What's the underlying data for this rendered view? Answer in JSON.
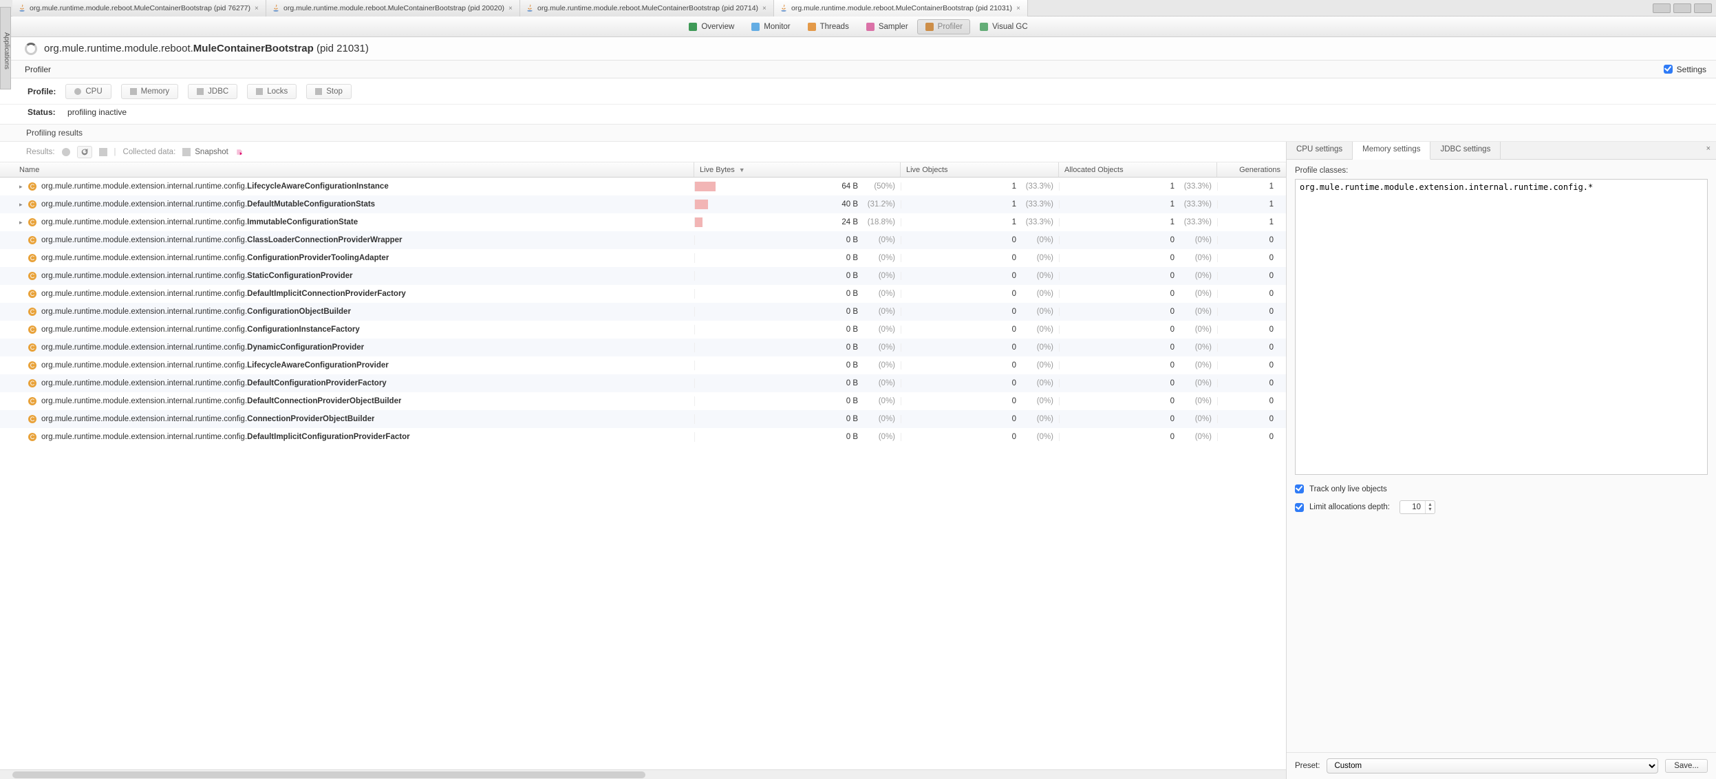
{
  "sidebar_label": "Applications",
  "tabs": [
    {
      "label": "org.mule.runtime.module.reboot.MuleContainerBootstrap (pid 76277)",
      "active": false
    },
    {
      "label": "org.mule.runtime.module.reboot.MuleContainerBootstrap (pid 20020)",
      "active": false
    },
    {
      "label": "org.mule.runtime.module.reboot.MuleContainerBootstrap (pid 20714)",
      "active": false
    },
    {
      "label": "org.mule.runtime.module.reboot.MuleContainerBootstrap (pid 21031)",
      "active": true
    }
  ],
  "toolbar": [
    {
      "id": "overview",
      "label": "Overview",
      "icon": "#1f8a3b"
    },
    {
      "id": "monitor",
      "label": "Monitor",
      "icon": "#4aa0e0"
    },
    {
      "id": "threads",
      "label": "Threads",
      "icon": "#e08a2a"
    },
    {
      "id": "sampler",
      "label": "Sampler",
      "icon": "#d65a9a"
    },
    {
      "id": "profiler",
      "label": "Profiler",
      "icon": "#c97f2d",
      "active": true
    },
    {
      "id": "visualgc",
      "label": "Visual GC",
      "icon": "#4aa060"
    }
  ],
  "header": {
    "prefix": "org.mule.runtime.module.reboot.",
    "bold": "MuleContainerBootstrap",
    "suffix": " (pid 21031)"
  },
  "profiler": {
    "label": "Profiler",
    "settings": "Settings"
  },
  "profile": {
    "label": "Profile:",
    "buttons": [
      "CPU",
      "Memory",
      "JDBC",
      "Locks",
      "Stop"
    ],
    "status_label": "Status:",
    "status_value": "profiling inactive",
    "results_label": "Profiling results",
    "resultsbar": {
      "results": "Results:",
      "collected": "Collected data:",
      "snapshot": "Snapshot"
    }
  },
  "columns": {
    "name": "Name",
    "lb": "Live Bytes",
    "lo": "Live Objects",
    "ao": "Allocated Objects",
    "gen": "Generations"
  },
  "pkg_prefix": "org.mule.runtime.module.extension.internal.runtime.config.",
  "rows": [
    {
      "cls": "LifecycleAwareConfigurationInstance",
      "exp": true,
      "bytes": "64 B",
      "bpct": "(50%)",
      "bar": 50,
      "lo": 1,
      "lopct": "(33.3%)",
      "ao": 1,
      "aopct": "(33.3%)",
      "gen": 1
    },
    {
      "cls": "DefaultMutableConfigurationStats",
      "exp": true,
      "bytes": "40 B",
      "bpct": "(31.2%)",
      "bar": 31.2,
      "lo": 1,
      "lopct": "(33.3%)",
      "ao": 1,
      "aopct": "(33.3%)",
      "gen": 1
    },
    {
      "cls": "ImmutableConfigurationState",
      "exp": true,
      "bytes": "24 B",
      "bpct": "(18.8%)",
      "bar": 18.8,
      "lo": 1,
      "lopct": "(33.3%)",
      "ao": 1,
      "aopct": "(33.3%)",
      "gen": 1
    },
    {
      "cls": "ClassLoaderConnectionProviderWrapper",
      "exp": false,
      "bytes": "0 B",
      "bpct": "(0%)",
      "bar": 0,
      "lo": 0,
      "lopct": "(0%)",
      "ao": 0,
      "aopct": "(0%)",
      "gen": 0
    },
    {
      "cls": "ConfigurationProviderToolingAdapter",
      "exp": false,
      "bytes": "0 B",
      "bpct": "(0%)",
      "bar": 0,
      "lo": 0,
      "lopct": "(0%)",
      "ao": 0,
      "aopct": "(0%)",
      "gen": 0
    },
    {
      "cls": "StaticConfigurationProvider",
      "exp": false,
      "bytes": "0 B",
      "bpct": "(0%)",
      "bar": 0,
      "lo": 0,
      "lopct": "(0%)",
      "ao": 0,
      "aopct": "(0%)",
      "gen": 0
    },
    {
      "cls": "DefaultImplicitConnectionProviderFactory",
      "exp": false,
      "bytes": "0 B",
      "bpct": "(0%)",
      "bar": 0,
      "lo": 0,
      "lopct": "(0%)",
      "ao": 0,
      "aopct": "(0%)",
      "gen": 0
    },
    {
      "cls": "ConfigurationObjectBuilder",
      "exp": false,
      "bytes": "0 B",
      "bpct": "(0%)",
      "bar": 0,
      "lo": 0,
      "lopct": "(0%)",
      "ao": 0,
      "aopct": "(0%)",
      "gen": 0
    },
    {
      "cls": "ConfigurationInstanceFactory",
      "exp": false,
      "bytes": "0 B",
      "bpct": "(0%)",
      "bar": 0,
      "lo": 0,
      "lopct": "(0%)",
      "ao": 0,
      "aopct": "(0%)",
      "gen": 0
    },
    {
      "cls": "DynamicConfigurationProvider",
      "exp": false,
      "bytes": "0 B",
      "bpct": "(0%)",
      "bar": 0,
      "lo": 0,
      "lopct": "(0%)",
      "ao": 0,
      "aopct": "(0%)",
      "gen": 0
    },
    {
      "cls": "LifecycleAwareConfigurationProvider",
      "exp": false,
      "bytes": "0 B",
      "bpct": "(0%)",
      "bar": 0,
      "lo": 0,
      "lopct": "(0%)",
      "ao": 0,
      "aopct": "(0%)",
      "gen": 0
    },
    {
      "cls": "DefaultConfigurationProviderFactory",
      "exp": false,
      "bytes": "0 B",
      "bpct": "(0%)",
      "bar": 0,
      "lo": 0,
      "lopct": "(0%)",
      "ao": 0,
      "aopct": "(0%)",
      "gen": 0
    },
    {
      "cls": "DefaultConnectionProviderObjectBuilder",
      "exp": false,
      "bytes": "0 B",
      "bpct": "(0%)",
      "bar": 0,
      "lo": 0,
      "lopct": "(0%)",
      "ao": 0,
      "aopct": "(0%)",
      "gen": 0
    },
    {
      "cls": "ConnectionProviderObjectBuilder",
      "exp": false,
      "bytes": "0 B",
      "bpct": "(0%)",
      "bar": 0,
      "lo": 0,
      "lopct": "(0%)",
      "ao": 0,
      "aopct": "(0%)",
      "gen": 0
    },
    {
      "cls": "DefaultImplicitConfigurationProviderFactor",
      "exp": false,
      "bytes": "0 B",
      "bpct": "(0%)",
      "bar": 0,
      "lo": 0,
      "lopct": "(0%)",
      "ao": 0,
      "aopct": "(0%)",
      "gen": 0
    }
  ],
  "settings": {
    "tabs": [
      "CPU settings",
      "Memory settings",
      "JDBC settings"
    ],
    "active_tab": 1,
    "profile_classes_label": "Profile classes:",
    "filter_text": "org.mule.runtime.module.extension.internal.runtime.config.*",
    "track_label": "Track only live objects",
    "limit_label": "Limit allocations depth:",
    "limit_value": "10",
    "preset_label": "Preset:",
    "preset_value": "Custom",
    "save_label": "Save..."
  }
}
